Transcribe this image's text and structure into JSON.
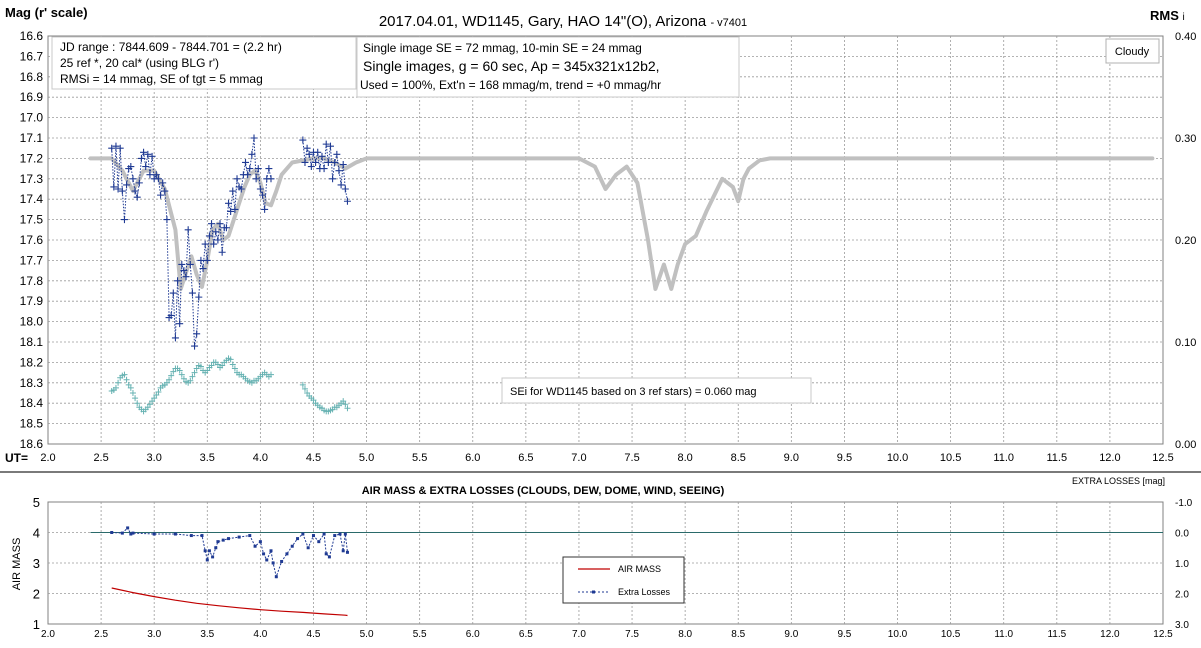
{
  "chart_data": [
    {
      "type": "scatter",
      "title": "2017.04.01,  WD1145, Gary, HAO  14\"(O), Arizona",
      "version_tag": "- v7401",
      "ylabel_left": "Mag (r' scale)",
      "ylabel_right": "RMS",
      "ylabel_right_suffix": "i",
      "xlabel": "UT=",
      "xlim": [
        2.0,
        12.5
      ],
      "ylim_left": [
        16.6,
        18.6
      ],
      "ylim_right": [
        0.0,
        0.4
      ],
      "x_ticks": [
        "2.0",
        "2.5",
        "3.0",
        "3.5",
        "4.0",
        "4.5",
        "5.0",
        "5.5",
        "6.0",
        "6.5",
        "7.0",
        "7.5",
        "8.0",
        "8.5",
        "9.0",
        "9.5",
        "10.0",
        "10.5",
        "11.0",
        "11.5",
        "12.0",
        "12.5"
      ],
      "y_ticks_left": [
        "16.6",
        "16.7",
        "16.8",
        "16.9",
        "17.0",
        "17.1",
        "17.2",
        "17.3",
        "17.4",
        "17.5",
        "17.6",
        "17.7",
        "17.8",
        "17.9",
        "18.0",
        "18.1",
        "18.2",
        "18.3",
        "18.4",
        "18.5",
        "18.6"
      ],
      "y_ticks_right": [
        "0.40",
        "0.30",
        "0.20",
        "0.10",
        "0.00"
      ],
      "grid": true,
      "info_box_1": [
        "JD range  : 7844.609 - 7844.701 = (2.2 hr)",
        "25 ref *, 20 cal* (using BLG r')",
        "RMSi = 14 mmag, SE of tgt = 5 mmag"
      ],
      "info_box_2": [
        "Single image SE = 72 mmag, 10-min SE = 24 mmag",
        "Single images, g = 60 sec, Ap = 345x321x12b2,",
        "Used = 100%, Ext'n = 168 mmag/m, trend = +0 mmag/hr"
      ],
      "cloudy_label": "Cloudy",
      "sei_note": "SEi for WD1145 based on 3 ref stars) = 0.060 mag",
      "colors": {
        "model": "#c0c0c0",
        "target": "#1f3a93",
        "rms": "#66b2b2"
      },
      "series": [
        {
          "role": "model",
          "x": [
            2.4,
            2.6,
            2.7,
            2.8,
            2.9,
            3.0,
            3.1,
            3.2,
            3.25,
            3.3,
            3.35,
            3.4,
            3.45,
            3.5,
            3.55,
            3.6,
            3.65,
            3.7,
            3.75,
            3.8,
            3.85,
            3.9,
            3.95,
            4.0,
            4.05,
            4.1,
            4.15,
            4.2,
            4.3,
            4.4,
            4.5,
            4.6,
            4.7,
            4.8,
            4.9,
            5.0,
            6.0,
            7.0,
            7.15,
            7.25,
            7.35,
            7.45,
            7.55,
            7.65,
            7.72,
            7.8,
            7.87,
            7.93,
            8.0,
            8.1,
            8.2,
            8.35,
            8.45,
            8.5,
            8.55,
            8.6,
            8.7,
            8.8,
            9.0,
            10.0,
            11.0,
            12.0,
            12.4
          ],
          "y": [
            17.2,
            17.2,
            17.26,
            17.36,
            17.26,
            17.26,
            17.35,
            17.55,
            17.84,
            17.76,
            17.68,
            17.77,
            17.83,
            17.7,
            17.55,
            17.52,
            17.6,
            17.58,
            17.5,
            17.42,
            17.34,
            17.28,
            17.26,
            17.32,
            17.42,
            17.43,
            17.36,
            17.28,
            17.22,
            17.21,
            17.2,
            17.2,
            17.22,
            17.25,
            17.22,
            17.2,
            17.2,
            17.2,
            17.24,
            17.35,
            17.28,
            17.24,
            17.32,
            17.6,
            17.84,
            17.72,
            17.84,
            17.72,
            17.62,
            17.58,
            17.46,
            17.3,
            17.34,
            17.41,
            17.3,
            17.25,
            17.21,
            17.2,
            17.2,
            17.2,
            17.2,
            17.2,
            17.2
          ]
        },
        {
          "role": "target",
          "x": [
            2.6,
            2.62,
            2.64,
            2.66,
            2.68,
            2.7,
            2.72,
            2.74,
            2.76,
            2.78,
            2.8,
            2.82,
            2.84,
            2.86,
            2.88,
            2.9,
            2.92,
            2.94,
            2.96,
            2.98,
            3.0,
            3.02,
            3.04,
            3.06,
            3.08,
            3.1,
            3.12,
            3.14,
            3.16,
            3.18,
            3.2,
            3.22,
            3.24,
            3.26,
            3.28,
            3.3,
            3.32,
            3.34,
            3.36,
            3.38,
            3.4,
            3.42,
            3.44,
            3.46,
            3.48,
            3.5,
            3.52,
            3.54,
            3.56,
            3.58,
            3.6,
            3.62,
            3.64,
            3.66,
            3.68,
            3.7,
            3.72,
            3.74,
            3.76,
            3.78,
            3.8,
            3.82,
            3.84,
            3.86,
            3.88,
            3.9,
            3.92,
            3.94,
            3.96,
            3.98,
            4.0,
            4.02,
            4.04,
            4.06,
            4.08,
            4.1,
            4.4,
            4.42,
            4.44,
            4.46,
            4.48,
            4.5,
            4.52,
            4.54,
            4.56,
            4.58,
            4.6,
            4.62,
            4.64,
            4.66,
            4.68,
            4.7,
            4.72,
            4.74,
            4.76,
            4.78,
            4.8,
            4.82
          ],
          "y": [
            17.15,
            17.34,
            17.14,
            17.35,
            17.15,
            17.36,
            17.5,
            17.33,
            17.25,
            17.24,
            17.3,
            17.36,
            17.39,
            17.32,
            17.2,
            17.17,
            17.24,
            17.18,
            17.28,
            17.19,
            17.3,
            17.28,
            17.3,
            17.38,
            17.32,
            17.36,
            17.5,
            17.98,
            17.97,
            17.86,
            18.08,
            17.8,
            18.01,
            17.72,
            17.75,
            17.78,
            17.55,
            17.72,
            17.86,
            18.12,
            18.06,
            17.88,
            17.7,
            17.74,
            17.62,
            17.7,
            17.58,
            17.52,
            17.62,
            17.56,
            17.6,
            17.52,
            17.66,
            17.54,
            17.54,
            17.42,
            17.46,
            17.36,
            17.45,
            17.3,
            17.34,
            17.35,
            17.28,
            17.22,
            17.28,
            17.25,
            17.18,
            17.1,
            17.3,
            17.25,
            17.35,
            17.38,
            17.45,
            17.3,
            17.25,
            17.3,
            17.11,
            17.22,
            17.15,
            17.18,
            17.24,
            17.17,
            17.22,
            17.17,
            17.25,
            17.19,
            17.25,
            17.13,
            17.22,
            17.14,
            17.3,
            17.22,
            17.18,
            17.26,
            17.33,
            17.23,
            17.35,
            17.41
          ]
        },
        {
          "role": "rms",
          "x": [
            2.6,
            2.62,
            2.64,
            2.66,
            2.68,
            2.7,
            2.72,
            2.74,
            2.76,
            2.78,
            2.8,
            2.82,
            2.84,
            2.86,
            2.88,
            2.9,
            2.92,
            2.94,
            2.96,
            2.98,
            3.0,
            3.02,
            3.04,
            3.06,
            3.08,
            3.1,
            3.12,
            3.14,
            3.16,
            3.18,
            3.2,
            3.22,
            3.24,
            3.26,
            3.28,
            3.3,
            3.32,
            3.34,
            3.36,
            3.38,
            3.4,
            3.42,
            3.44,
            3.46,
            3.48,
            3.5,
            3.52,
            3.54,
            3.56,
            3.58,
            3.6,
            3.62,
            3.64,
            3.66,
            3.68,
            3.7,
            3.72,
            3.74,
            3.76,
            3.78,
            3.8,
            3.82,
            3.84,
            3.86,
            3.88,
            3.9,
            3.92,
            3.94,
            3.96,
            3.98,
            4.0,
            4.02,
            4.04,
            4.06,
            4.08,
            4.1,
            4.4,
            4.42,
            4.44,
            4.46,
            4.48,
            4.5,
            4.52,
            4.54,
            4.56,
            4.58,
            4.6,
            4.62,
            4.64,
            4.66,
            4.68,
            4.7,
            4.72,
            4.74,
            4.76,
            4.78,
            4.8,
            4.82
          ],
          "y": [
            0.052,
            0.053,
            0.055,
            0.06,
            0.065,
            0.067,
            0.068,
            0.063,
            0.058,
            0.055,
            0.05,
            0.045,
            0.04,
            0.036,
            0.034,
            0.032,
            0.034,
            0.036,
            0.039,
            0.042,
            0.045,
            0.048,
            0.051,
            0.055,
            0.057,
            0.058,
            0.06,
            0.063,
            0.067,
            0.071,
            0.074,
            0.074,
            0.072,
            0.068,
            0.064,
            0.061,
            0.06,
            0.062,
            0.066,
            0.07,
            0.074,
            0.077,
            0.076,
            0.072,
            0.07,
            0.072,
            0.075,
            0.077,
            0.08,
            0.08,
            0.078,
            0.075,
            0.077,
            0.08,
            0.082,
            0.084,
            0.083,
            0.078,
            0.074,
            0.07,
            0.068,
            0.068,
            0.066,
            0.064,
            0.062,
            0.061,
            0.06,
            0.062,
            0.062,
            0.064,
            0.066,
            0.068,
            0.07,
            0.068,
            0.066,
            0.068,
            0.058,
            0.054,
            0.05,
            0.047,
            0.045,
            0.043,
            0.04,
            0.038,
            0.036,
            0.035,
            0.033,
            0.032,
            0.032,
            0.033,
            0.034,
            0.036,
            0.036,
            0.038,
            0.04,
            0.042,
            0.039,
            0.035
          ]
        }
      ]
    },
    {
      "type": "line",
      "title": "AIR MASS & EXTRA LOSSES (CLOUDS, DEW, DOME, WIND, SEEING)",
      "ylabel_left": "AIR MASS",
      "ylabel_right": "EXTRA LOSSES [mag]",
      "xlim": [
        2.0,
        12.5
      ],
      "ylim_left": [
        1,
        5
      ],
      "ylim_right": [
        -1.0,
        3.0
      ],
      "x_ticks": [
        "2.0",
        "2.5",
        "3.0",
        "3.5",
        "4.0",
        "4.5",
        "5.0",
        "5.5",
        "6.0",
        "6.5",
        "7.0",
        "7.5",
        "8.0",
        "8.5",
        "9.0",
        "9.5",
        "10.0",
        "10.5",
        "11.0",
        "11.5",
        "12.0",
        "12.5"
      ],
      "y_ticks_left": [
        "5",
        "4",
        "3",
        "2",
        "1"
      ],
      "y_ticks_right": [
        "-1.0",
        "0.0",
        "1.0",
        "2.0",
        "3.0"
      ],
      "grid": true,
      "colors": {
        "airmass": "#c00000",
        "losses": "#1f3a93",
        "zero_line": "#2a6a6a"
      },
      "legend": [
        "AIR MASS",
        "Extra Losses"
      ],
      "series": [
        {
          "name": "AIR MASS",
          "x": [
            2.6,
            2.8,
            3.0,
            3.2,
            3.4,
            3.6,
            3.8,
            4.0,
            4.2,
            4.4,
            4.6,
            4.8,
            4.82
          ],
          "y": [
            2.18,
            2.03,
            1.9,
            1.78,
            1.68,
            1.6,
            1.53,
            1.47,
            1.42,
            1.38,
            1.33,
            1.29,
            1.28
          ]
        },
        {
          "name": "Extra Losses",
          "x": [
            2.6,
            2.7,
            2.75,
            2.78,
            2.8,
            3.0,
            3.2,
            3.35,
            3.45,
            3.48,
            3.5,
            3.52,
            3.55,
            3.58,
            3.6,
            3.65,
            3.7,
            3.8,
            3.9,
            3.95,
            4.0,
            4.03,
            4.06,
            4.1,
            4.12,
            4.15,
            4.2,
            4.25,
            4.3,
            4.35,
            4.4,
            4.45,
            4.5,
            4.55,
            4.6,
            4.62,
            4.65,
            4.7,
            4.75,
            4.78,
            4.8,
            4.82
          ],
          "y": [
            0.0,
            0.02,
            -0.15,
            0.05,
            0.02,
            0.05,
            0.05,
            0.1,
            0.1,
            0.6,
            0.9,
            0.6,
            0.8,
            0.5,
            0.3,
            0.25,
            0.2,
            0.15,
            0.1,
            0.45,
            0.3,
            0.7,
            0.9,
            0.6,
            1.0,
            1.45,
            0.95,
            0.7,
            0.45,
            0.2,
            0.05,
            0.5,
            0.1,
            0.3,
            0.05,
            0.7,
            0.8,
            0.1,
            0.05,
            0.6,
            0.05,
            0.65
          ]
        }
      ]
    }
  ]
}
